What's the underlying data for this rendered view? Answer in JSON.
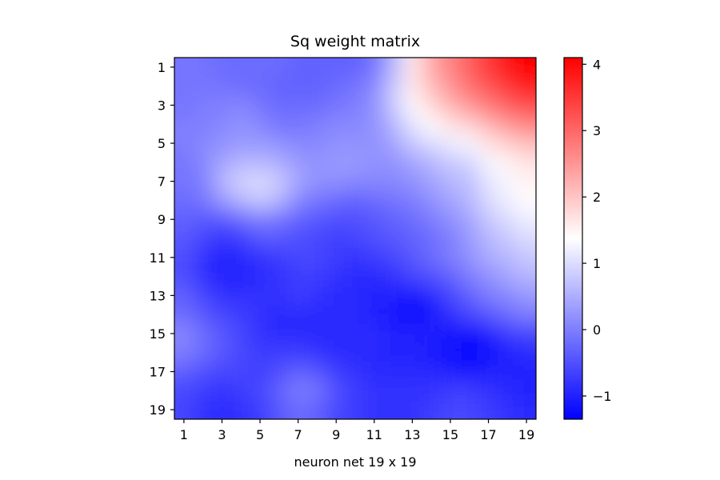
{
  "chart_data": {
    "type": "heatmap",
    "title": "Sq weight matrix",
    "xlabel": "neuron net 19 x 19",
    "ylabel": "",
    "x_categories": [
      1,
      2,
      3,
      4,
      5,
      6,
      7,
      8,
      9,
      10,
      11,
      12,
      13,
      14,
      15,
      16,
      17,
      18,
      19
    ],
    "y_categories": [
      1,
      2,
      3,
      4,
      5,
      6,
      7,
      8,
      9,
      10,
      11,
      12,
      13,
      14,
      15,
      16,
      17,
      18,
      19
    ],
    "x_tick_labels": [
      "1",
      "3",
      "5",
      "7",
      "9",
      "11",
      "13",
      "15",
      "17",
      "19"
    ],
    "y_tick_labels": [
      "1",
      "3",
      "5",
      "7",
      "9",
      "11",
      "13",
      "15",
      "17",
      "19"
    ],
    "colorbar_ticks": [
      "−1",
      "0",
      "1",
      "2",
      "3",
      "4"
    ],
    "colorbar_tick_values": [
      -1,
      0,
      1,
      2,
      3,
      4
    ],
    "colormap": "bwr",
    "vmin": -1.35,
    "vmax": 4.1,
    "interpolation": "smooth",
    "colors": {
      "low": "#0000ff",
      "mid": "#ffffff",
      "high": "#ff0000"
    },
    "values": [
      [
        -0.1,
        -0.1,
        -0.2,
        -0.2,
        -0.2,
        -0.2,
        -0.3,
        -0.3,
        -0.3,
        -0.3,
        -0.1,
        0.6,
        1.6,
        2.3,
        2.7,
        3.1,
        3.5,
        3.9,
        4.1
      ],
      [
        -0.1,
        -0.1,
        -0.1,
        -0.2,
        -0.2,
        -0.3,
        -0.3,
        -0.3,
        -0.2,
        -0.1,
        0.1,
        0.8,
        1.6,
        2.1,
        2.5,
        2.9,
        3.2,
        3.5,
        3.8
      ],
      [
        -0.1,
        0.0,
        0.0,
        0.1,
        -0.1,
        -0.2,
        -0.2,
        -0.2,
        -0.1,
        0.0,
        0.2,
        0.8,
        1.4,
        1.8,
        2.2,
        2.5,
        2.8,
        3.1,
        3.3
      ],
      [
        0.0,
        0.0,
        0.1,
        0.2,
        0.1,
        -0.1,
        -0.1,
        0.0,
        0.1,
        0.1,
        0.2,
        0.6,
        1.1,
        1.4,
        1.7,
        1.9,
        2.2,
        2.5,
        2.7
      ],
      [
        0.0,
        0.1,
        0.2,
        0.3,
        0.3,
        0.2,
        0.1,
        0.1,
        0.2,
        0.2,
        0.2,
        0.4,
        0.8,
        1.0,
        1.2,
        1.3,
        1.7,
        1.9,
        2.1
      ],
      [
        -0.1,
        0.1,
        0.4,
        0.6,
        0.6,
        0.5,
        0.3,
        0.2,
        0.3,
        0.3,
        0.2,
        0.2,
        0.4,
        0.6,
        0.8,
        0.9,
        1.3,
        1.5,
        1.7
      ],
      [
        -0.1,
        0.0,
        0.6,
        0.9,
        1.0,
        0.8,
        0.4,
        0.2,
        0.2,
        0.1,
        0.1,
        0.1,
        0.2,
        0.4,
        0.6,
        0.7,
        1.1,
        1.3,
        1.5
      ],
      [
        -0.2,
        -0.1,
        0.3,
        0.6,
        0.8,
        0.6,
        0.1,
        -0.1,
        -0.2,
        -0.3,
        -0.2,
        -0.1,
        0.0,
        0.2,
        0.4,
        0.6,
        1.0,
        1.2,
        1.4
      ],
      [
        -0.3,
        -0.4,
        -0.4,
        -0.2,
        0.0,
        -0.1,
        -0.3,
        -0.4,
        -0.5,
        -0.5,
        -0.4,
        -0.3,
        -0.2,
        0.0,
        0.2,
        0.4,
        0.8,
        1.0,
        1.2
      ],
      [
        -0.4,
        -0.6,
        -0.8,
        -0.7,
        -0.4,
        -0.4,
        -0.5,
        -0.6,
        -0.7,
        -0.6,
        -0.5,
        -0.4,
        -0.3,
        -0.2,
        0.0,
        0.3,
        0.6,
        0.8,
        1.0
      ],
      [
        -0.5,
        -0.8,
        -1.0,
        -0.9,
        -0.8,
        -0.7,
        -0.6,
        -0.6,
        -0.7,
        -0.8,
        -0.7,
        -0.6,
        -0.4,
        -0.2,
        0.0,
        0.2,
        0.5,
        0.6,
        0.8
      ],
      [
        -0.5,
        -0.8,
        -1.0,
        -1.0,
        -0.9,
        -0.8,
        -0.7,
        -0.7,
        -0.8,
        -0.9,
        -0.9,
        -0.8,
        -0.6,
        -0.5,
        -0.3,
        0.0,
        0.2,
        0.4,
        0.6
      ],
      [
        -0.3,
        -0.6,
        -0.8,
        -0.8,
        -0.8,
        -0.8,
        -0.7,
        -0.8,
        -0.9,
        -0.9,
        -1.0,
        -1.0,
        -1.1,
        -0.9,
        -0.6,
        -0.3,
        0.0,
        0.1,
        0.3
      ],
      [
        -0.2,
        -0.4,
        -0.6,
        -0.7,
        -0.8,
        -0.9,
        -0.9,
        -0.9,
        -0.9,
        -0.9,
        -1.0,
        -1.1,
        -1.3,
        -1.1,
        -0.8,
        -0.6,
        -0.4,
        -0.2,
        0.0
      ],
      [
        0.1,
        -0.2,
        -0.4,
        -0.6,
        -0.8,
        -0.9,
        -0.9,
        -0.9,
        -0.9,
        -0.9,
        -0.9,
        -1.0,
        -1.0,
        -1.0,
        -1.1,
        -1.2,
        -1.0,
        -0.7,
        -0.6
      ],
      [
        0.0,
        -0.2,
        -0.4,
        -0.6,
        -0.7,
        -0.7,
        -0.7,
        -0.8,
        -0.9,
        -0.9,
        -0.9,
        -1.0,
        -1.0,
        -1.1,
        -1.2,
        -1.3,
        -1.2,
        -1.0,
        -0.9
      ],
      [
        -0.3,
        -0.5,
        -0.6,
        -0.6,
        -0.7,
        -0.5,
        -0.3,
        -0.4,
        -0.7,
        -0.8,
        -0.9,
        -0.9,
        -0.9,
        -0.9,
        -1.0,
        -1.1,
        -1.0,
        -1.0,
        -1.0
      ],
      [
        -0.6,
        -0.7,
        -0.8,
        -0.7,
        -0.6,
        -0.3,
        0.0,
        -0.1,
        -0.5,
        -0.7,
        -0.8,
        -0.8,
        -0.8,
        -0.8,
        -0.7,
        -0.7,
        -0.8,
        -0.9,
        -1.0
      ],
      [
        -0.6,
        -0.8,
        -0.9,
        -0.8,
        -0.7,
        -0.4,
        -0.2,
        -0.3,
        -0.6,
        -0.7,
        -0.8,
        -0.8,
        -0.8,
        -0.7,
        -0.6,
        -0.6,
        -0.7,
        -0.8,
        -0.9
      ]
    ]
  }
}
